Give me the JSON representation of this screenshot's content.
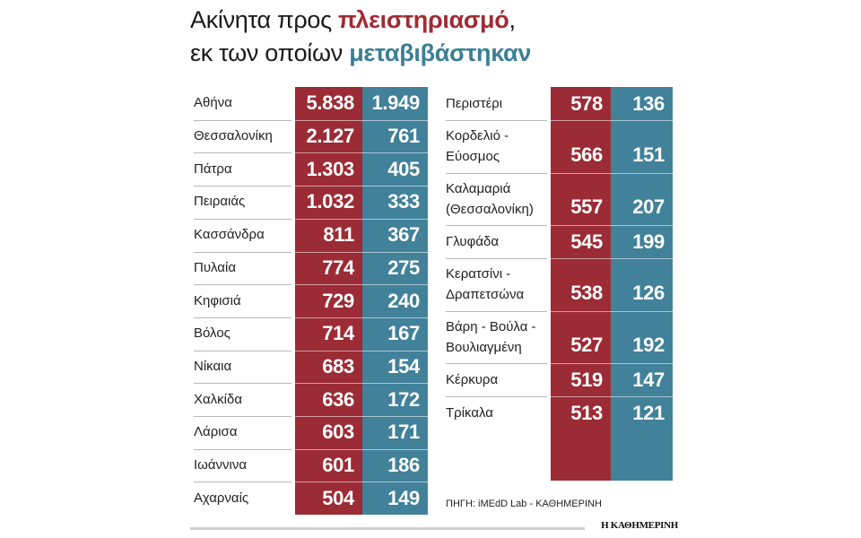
{
  "title": {
    "line1_prefix": "Ακίνητα προς ",
    "line1_accent": "πλειστηριασμό",
    "line1_suffix": ",",
    "line2_prefix": "εκ των οποίων ",
    "line2_accent": "μεταβιβάστηκαν"
  },
  "colors": {
    "auction": "#9b2b35",
    "transferred": "#41819a",
    "text": "#222222"
  },
  "source": "ΠΗΓΗ: iMEdD Lab - ΚΑΘΗΜΕΡΙΝΗ",
  "brand": "Η ΚΑΘΗΜΕΡΙΝΗ",
  "chart_data": {
    "type": "table",
    "series": [
      {
        "name": "Ακίνητα προς πλειστηριασμό",
        "color": "#9b2b35"
      },
      {
        "name": "εκ των οποίων μεταβιβάστηκαν",
        "color": "#41819a"
      }
    ],
    "left_rows": [
      {
        "label": [
          "Αθήνα"
        ],
        "auction": "5.838",
        "transferred": "1.949"
      },
      {
        "label": [
          "Θεσσαλονίκη"
        ],
        "auction": "2.127",
        "transferred": "761"
      },
      {
        "label": [
          "Πάτρα"
        ],
        "auction": "1.303",
        "transferred": "405"
      },
      {
        "label": [
          "Πειραιάς"
        ],
        "auction": "1.032",
        "transferred": "333"
      },
      {
        "label": [
          "Κασσάνδρα"
        ],
        "auction": "811",
        "transferred": "367"
      },
      {
        "label": [
          "Πυλαία"
        ],
        "auction": "774",
        "transferred": "275"
      },
      {
        "label": [
          "Κηφισιά"
        ],
        "auction": "729",
        "transferred": "240"
      },
      {
        "label": [
          "Βόλος"
        ],
        "auction": "714",
        "transferred": "167"
      },
      {
        "label": [
          "Νίκαια"
        ],
        "auction": "683",
        "transferred": "154"
      },
      {
        "label": [
          "Χαλκίδα"
        ],
        "auction": "636",
        "transferred": "172"
      },
      {
        "label": [
          "Λάρισα"
        ],
        "auction": "603",
        "transferred": "171"
      },
      {
        "label": [
          "Ιωάννινα"
        ],
        "auction": "601",
        "transferred": "186"
      },
      {
        "label": [
          "Αχαρναίς"
        ],
        "auction": "504",
        "transferred": "149"
      }
    ],
    "right_rows": [
      {
        "label": [
          "Περιστέρι"
        ],
        "auction": "578",
        "transferred": "136"
      },
      {
        "label": [
          "Κορδελιό -",
          "Εύοσμος"
        ],
        "auction": "566",
        "transferred": "151"
      },
      {
        "label": [
          "Καλαμαριά",
          "(Θεσσαλονίκη)"
        ],
        "auction": "557",
        "transferred": "207"
      },
      {
        "label": [
          "Γλυφάδα"
        ],
        "auction": "545",
        "transferred": "199"
      },
      {
        "label": [
          "Κερατσίνι -",
          "Δραπετσώνα"
        ],
        "auction": "538",
        "transferred": "126"
      },
      {
        "label": [
          "Βάρη - Βούλα -",
          "Βουλιαγμένη"
        ],
        "auction": "527",
        "transferred": "192"
      },
      {
        "label": [
          "Κέρκυρα"
        ],
        "auction": "519",
        "transferred": "147"
      },
      {
        "label": [
          "Τρίκαλα"
        ],
        "auction": "513",
        "transferred": "121"
      }
    ]
  }
}
